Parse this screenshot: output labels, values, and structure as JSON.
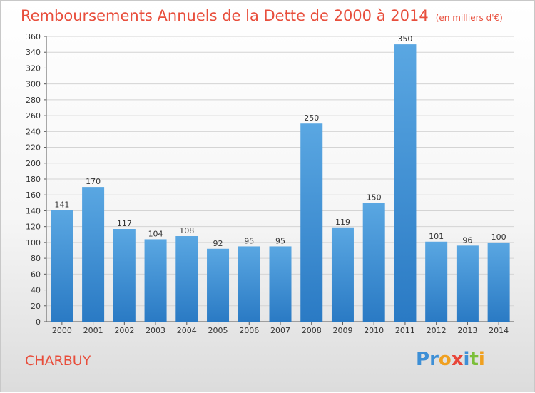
{
  "chart_data": {
    "type": "bar",
    "title": "Remboursements Annuels de la Dette de 2000 à 2014",
    "unit_note": "(en milliers d'€)",
    "categories": [
      "2000",
      "2001",
      "2002",
      "2003",
      "2004",
      "2005",
      "2006",
      "2007",
      "2008",
      "2009",
      "2010",
      "2011",
      "2012",
      "2013",
      "2014"
    ],
    "values": [
      141,
      170,
      117,
      104,
      108,
      92,
      95,
      95,
      250,
      119,
      150,
      350,
      101,
      96,
      100
    ],
    "ylim": [
      0,
      360
    ],
    "yticks": [
      0,
      20,
      40,
      60,
      80,
      100,
      120,
      140,
      160,
      180,
      200,
      220,
      240,
      260,
      280,
      300,
      320,
      340,
      360
    ],
    "grid": true,
    "bar_color": "#5aa7e2",
    "bar_color_dark": "#2a7ac4"
  },
  "commune": "CHARBUY",
  "logo": {
    "letters": [
      "P",
      "r",
      "o",
      "x",
      "i",
      "t",
      "i"
    ],
    "colors": [
      "#3d8fd6",
      "#3d8fd6",
      "#f0a020",
      "#e8463a",
      "#3d8fd6",
      "#7cbf3a",
      "#f0a020"
    ]
  }
}
